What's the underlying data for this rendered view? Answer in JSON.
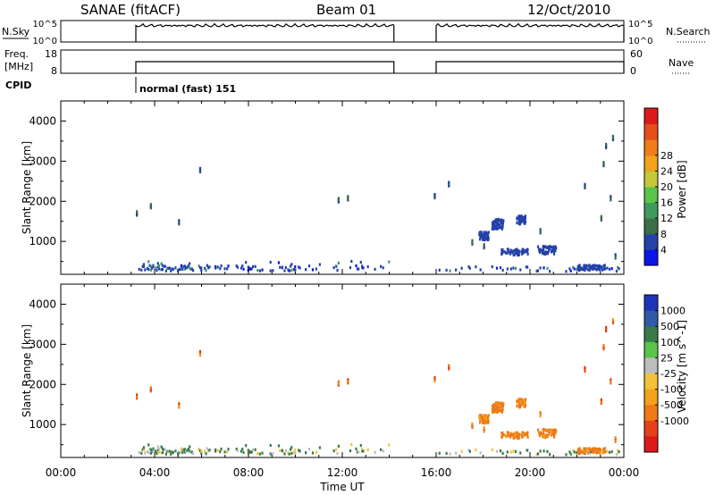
{
  "header": {
    "station": "SANAE (fitACF)",
    "beam": "Beam 01",
    "date": "12/Oct/2010"
  },
  "top_panels": {
    "nsky_label": "N.Sky",
    "nsky_ticks": [
      "10^5",
      "10^0"
    ],
    "nsearch_label": "N.Search",
    "nsearch_ticks": [
      "10^5",
      "10^0"
    ],
    "freq_label_1": "Freq.",
    "freq_label_2": "[MHz]",
    "freq_ticks": [
      "18",
      "8"
    ],
    "nave_label": "Nave",
    "nave_ticks": [
      "60",
      "0"
    ],
    "cpid_label": "CPID",
    "cpid_text": "normal (fast) 151",
    "coverage": [
      [
        3.2,
        14.2
      ],
      [
        16.0,
        24.0
      ]
    ]
  },
  "chart_data": [
    {
      "type": "heatmap",
      "name": "power",
      "ylabel": "Slant Range [km]",
      "yticks": [
        1000,
        2000,
        3000,
        4000
      ],
      "ylim": [
        180,
        4500
      ],
      "xlim": [
        0,
        24
      ],
      "colorbar_label": "Power [dB]",
      "colorbar_ticks": [
        "4",
        "8",
        "12",
        "16",
        "20",
        "24",
        "28"
      ],
      "colorbar_colors": [
        "#0b16e6",
        "#2442a8",
        "#3b6f4a",
        "#3f9a5c",
        "#59c34a",
        "#c6c83a",
        "#f2a21d",
        "#f07d17",
        "#e5501a",
        "#dd1a1a"
      ]
    },
    {
      "type": "heatmap",
      "name": "velocity",
      "ylabel": "Slant Range [km]",
      "yticks": [
        1000,
        2000,
        3000,
        4000
      ],
      "ylim": [
        180,
        4500
      ],
      "xlim": [
        0,
        24
      ],
      "colorbar_label": "Velocity [m s^-1]",
      "colorbar_ticks": [
        "1000",
        "500",
        "100",
        "25",
        "-25",
        "-100",
        "-500",
        "-1000"
      ],
      "colorbar_colors": [
        "#1f35b8",
        "#2f5aa8",
        "#3a7a4a",
        "#59c34a",
        "#bdbdbd",
        "#f2c23a",
        "#f2a21d",
        "#ef7a17",
        "#e5401a",
        "#dd1a1a"
      ]
    }
  ],
  "xaxis": {
    "ticks": [
      "00:00",
      "04:00",
      "08:00",
      "12:00",
      "16:00",
      "20:00",
      "00:00"
    ],
    "label": "Time UT"
  }
}
